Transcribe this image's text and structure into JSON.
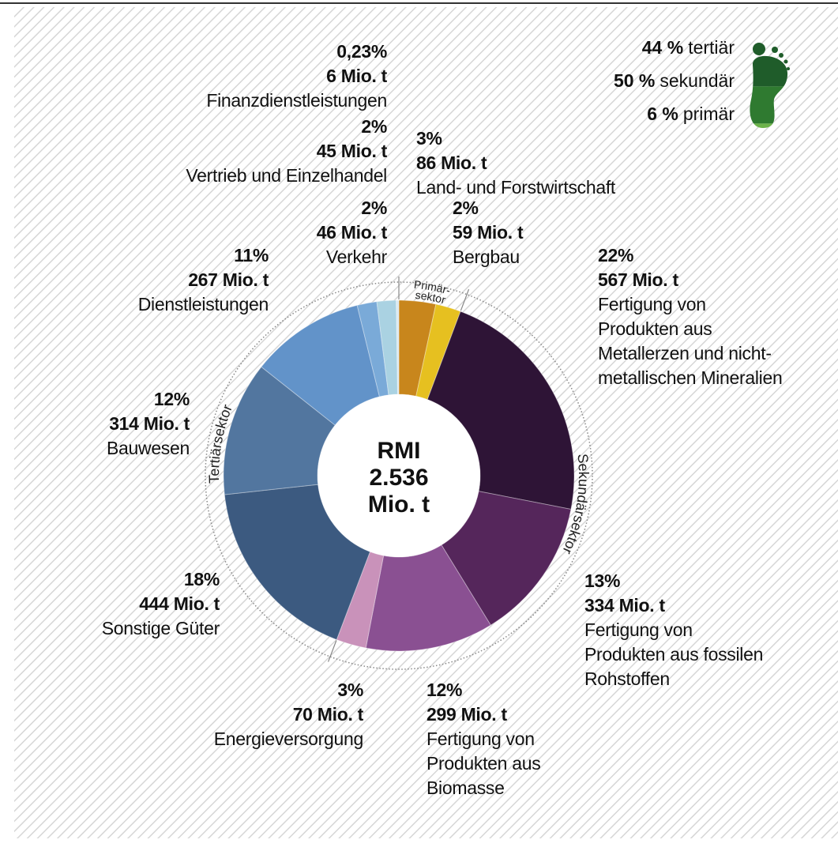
{
  "chart_data": {
    "type": "donut",
    "categories": [
      "Land- und Forstwirtschaft",
      "Bergbau",
      "Fertigung von Produkten aus Metallerzen und nicht-metallischen Mineralien",
      "Fertigung von Produkten aus fossilen Rohstoffen",
      "Fertigung von Produkten aus Biomasse",
      "Energieversorgung",
      "Sonstige Güter",
      "Bauwesen",
      "Dienstleistungen",
      "Verkehr",
      "Vertrieb und Einzelhandel",
      "Finanzdienstleistungen"
    ],
    "values": [
      86,
      59,
      567,
      334,
      299,
      70,
      444,
      314,
      267,
      46,
      45,
      6
    ],
    "value_labels": [
      "86 Mio. t",
      "59 Mio. t",
      "567 Mio. t",
      "334 Mio. t",
      "299 Mio. t",
      "70 Mio. t",
      "444 Mio. t",
      "314 Mio. t",
      "267 Mio. t",
      "46 Mio. t",
      "45 Mio. t",
      "6 Mio. t"
    ],
    "shares": [
      3,
      2,
      22,
      13,
      12,
      3,
      18,
      12,
      11,
      2,
      2,
      0.23
    ],
    "share_labels": [
      "3%",
      "2%",
      "22%",
      "13%",
      "12%",
      "3%",
      "18%",
      "12%",
      "11%",
      "2%",
      "2%",
      "0,23%"
    ],
    "colors": [
      "#c8861c",
      "#e6c020",
      "#2e1436",
      "#55265b",
      "#8a5092",
      "#c992ba",
      "#3c5a80",
      "#52769f",
      "#6293c9",
      "#7aaad8",
      "#aad2e2",
      "#d9e9f1"
    ],
    "center_label": [
      "RMI",
      "2.536",
      "Mio. t"
    ],
    "sectors": [
      {
        "lines": [
          "Primär-",
          "sektor"
        ]
      },
      {
        "lines": [
          "Sekundärsektor"
        ]
      },
      {
        "lines": [
          "Tertiärsektor"
        ]
      }
    ],
    "legend": [
      {
        "share": {
          "value": 44,
          "label": "44 %"
        },
        "name": "tertiär",
        "color": "#1f5c2a"
      },
      {
        "share": {
          "value": 50,
          "label": "50 %"
        },
        "name": "sekundär",
        "color": "#2f7a30"
      },
      {
        "share": {
          "value": 6,
          "label": "6 %"
        },
        "name": "primär",
        "color": "#6cb24a"
      }
    ]
  }
}
